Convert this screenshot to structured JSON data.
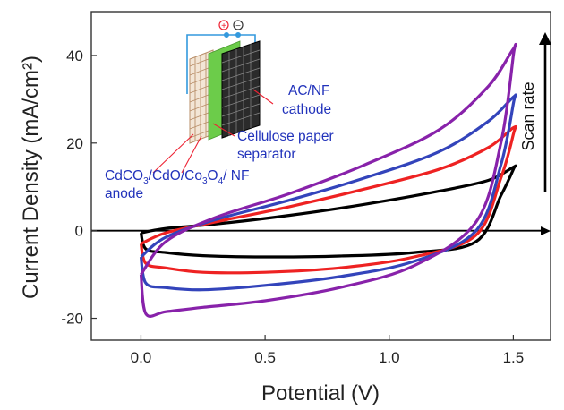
{
  "chart_data": {
    "type": "line",
    "xlabel": "Potential (V)",
    "ylabel": "Current Density (mA/cm²)",
    "xlim": [
      -0.2,
      1.65
    ],
    "ylim": [
      -25,
      50
    ],
    "x_ticks": [
      "0.0",
      "0.5",
      "1.0",
      "1.5"
    ],
    "y_ticks": [
      "-20",
      "0",
      "20",
      "40"
    ],
    "series": [
      {
        "color": "#000000",
        "x": [
          0.0,
          0.1,
          0.3,
          0.6,
          0.9,
          1.2,
          1.4,
          1.5,
          1.5,
          1.45,
          1.35,
          1.1,
          0.8,
          0.5,
          0.25,
          0.1,
          0.02,
          0.0
        ],
        "y": [
          -0.5,
          0.5,
          1.5,
          3.5,
          6.0,
          9.0,
          11.5,
          14.5,
          14.0,
          8.0,
          -2.5,
          -5.0,
          -5.8,
          -6.0,
          -5.7,
          -5.0,
          -4.2,
          -0.5
        ]
      },
      {
        "color": "#ee2222",
        "x": [
          0.0,
          0.1,
          0.3,
          0.6,
          0.9,
          1.2,
          1.4,
          1.5,
          1.5,
          1.45,
          1.35,
          1.1,
          0.8,
          0.5,
          0.25,
          0.1,
          0.02,
          0.0
        ],
        "y": [
          -3.0,
          -0.5,
          2.0,
          5.5,
          9.5,
          14.0,
          19.0,
          23.5,
          22.0,
          12.0,
          -1.0,
          -6.0,
          -8.5,
          -9.5,
          -9.5,
          -8.5,
          -7.5,
          -3.0
        ]
      },
      {
        "color": "#3344bb",
        "x": [
          0.0,
          0.1,
          0.3,
          0.6,
          0.9,
          1.2,
          1.4,
          1.5,
          1.5,
          1.45,
          1.35,
          1.1,
          0.8,
          0.5,
          0.25,
          0.1,
          0.02,
          0.0
        ],
        "y": [
          -6.0,
          -1.5,
          2.5,
          7.0,
          12.0,
          18.0,
          25.0,
          30.5,
          29.0,
          15.0,
          0.0,
          -7.0,
          -10.5,
          -12.5,
          -13.5,
          -13.0,
          -12.0,
          -6.0
        ]
      },
      {
        "color": "#8822aa",
        "x": [
          0.0,
          0.1,
          0.3,
          0.6,
          0.9,
          1.2,
          1.4,
          1.5,
          1.5,
          1.45,
          1.35,
          1.1,
          0.8,
          0.5,
          0.25,
          0.1,
          0.02,
          0.0
        ],
        "y": [
          -10.0,
          -2.5,
          3.0,
          8.5,
          15.0,
          23.0,
          33.0,
          41.5,
          40.0,
          20.0,
          2.0,
          -8.0,
          -13.0,
          -16.0,
          -17.5,
          -18.5,
          -19.0,
          -10.0
        ]
      }
    ],
    "annotations": {
      "cathode_line1": "AC/NF",
      "cathode_line2": "cathode",
      "separator_line1": "Cellulose paper",
      "separator_line2": "separator",
      "anode_line1_a": "CdCO",
      "anode_line1_b": "/CdO/Co",
      "anode_line1_c": "O",
      "anode_line1_d": "/ NF",
      "anode_sub3": "3",
      "anode_sub4": "4",
      "anode_line2": "anode",
      "plus_sign": "+",
      "minus_sign": "−",
      "scan_rate": "Scan rate"
    },
    "grid": false,
    "legend": "none"
  }
}
